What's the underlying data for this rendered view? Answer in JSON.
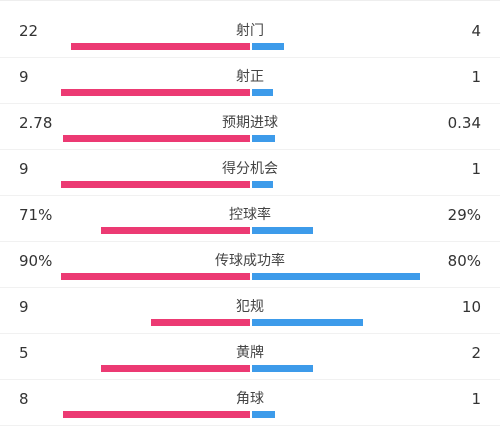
{
  "stats": [
    {
      "label": "射门",
      "home": "22",
      "away": "4",
      "home_ratio": 0.85,
      "away_ratio": 0.15
    },
    {
      "label": "射正",
      "home": "9",
      "away": "1",
      "home_ratio": 0.9,
      "away_ratio": 0.1
    },
    {
      "label": "预期进球",
      "home": "2.78",
      "away": "0.34",
      "home_ratio": 0.89,
      "away_ratio": 0.11
    },
    {
      "label": "得分机会",
      "home": "9",
      "away": "1",
      "home_ratio": 0.9,
      "away_ratio": 0.1
    },
    {
      "label": "控球率",
      "home": "71%",
      "away": "29%",
      "home_ratio": 0.71,
      "away_ratio": 0.29
    },
    {
      "label": "传球成功率",
      "home": "90%",
      "away": "80%",
      "home_ratio": 0.9,
      "away_ratio": 0.8
    },
    {
      "label": "犯规",
      "home": "9",
      "away": "10",
      "home_ratio": 0.47,
      "away_ratio": 0.53
    },
    {
      "label": "黄牌",
      "home": "5",
      "away": "2",
      "home_ratio": 0.71,
      "away_ratio": 0.29
    },
    {
      "label": "角球",
      "home": "8",
      "away": "1",
      "home_ratio": 0.89,
      "away_ratio": 0.11
    }
  ],
  "colors": {
    "home": "#ec3a73",
    "away": "#3d9bea"
  }
}
